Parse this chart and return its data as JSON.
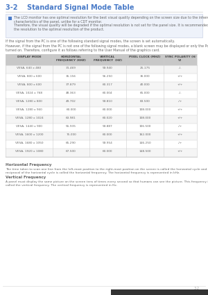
{
  "page_label": "3-2",
  "title": "3-2    Standard Signal Mode Table",
  "title_color": "#4a7bc8",
  "note_icon_color": "#4a7bc8",
  "note_lines_1": "The LCD monitor has one optimal resolution for the best visual quality depending on the screen size due to the inherent\ncharacteristics of the panel, unlike for a CDT monitor.",
  "note_lines_2": "Therefore, the visual quality will be degraded if the optimal resolution is not set for the panel size. It is recommended setting\nthe resolution to the optimal resolution of the product.",
  "para1": "If the signal from the PC is one of the following standard signal modes, the screen is set automatically.",
  "para2": "However, if the signal from the PC is not one of the following signal modes, a blank screen may be displayed or only the Power LED may be\nturned on. Therefore, configure it as follows referring to the User Manual of the graphics card.",
  "table_header": [
    "DISPLAY MODE",
    "HORIZONTAL\nFREQUENCY (KHZ)",
    "VERTICAL\nFREQUENCY  (HZ)",
    "PIXEL CLOCK (MHZ)",
    "SYNC POLARITY (H/\nV)"
  ],
  "table_header_bg": "#c8c8c8",
  "table_row_bg1": "#f5f5f5",
  "table_row_bg2": "#ffffff",
  "table_data": [
    [
      "VESA, 640 x 480",
      "31.469",
      "59.940",
      "25.175",
      "-/-"
    ],
    [
      "VESA, 800 x 600",
      "35.156",
      "56.250",
      "36.000",
      "+/+"
    ],
    [
      "VESA, 800 x 600",
      "37.879",
      "60.317",
      "40.000",
      "+/+"
    ],
    [
      "VESA, 1024 x 768",
      "48.363",
      "60.004",
      "65.000",
      "-/-"
    ],
    [
      "VESA, 1280 x 800",
      "49.702",
      "59.810",
      "83.500",
      "-/+"
    ],
    [
      "VESA, 1280 x 960",
      "60.000",
      "60.000",
      "108.000",
      "+/+"
    ],
    [
      "VESA, 1280 x 1024",
      "63.981",
      "60.020",
      "108.000",
      "+/+"
    ],
    [
      "VESA, 1440 x 900",
      "55.935",
      "59.887",
      "106.500",
      "-/+"
    ],
    [
      "VESA, 1600 x 1200",
      "75.000",
      "60.000",
      "162.000",
      "+/+"
    ],
    [
      "VESA, 1680 x 1050",
      "65.290",
      "59.954",
      "146.250",
      "-/+"
    ],
    [
      "VESA, 1920 x 1080",
      "67.500",
      "60.000",
      "148.500",
      "+/+"
    ]
  ],
  "hfreq_label": "Horizontal Frequency",
  "hfreq_text": "The time taken to scan one line from the left-most position to the right-most position on the screen is called the horizontal cycle and the\nreciprocal of the horizontal cycle is called the horizontal frequency. The horizontal frequency is represented in kHz.",
  "vfreq_label": "Vertical Frequency",
  "vfreq_text": "A panel must display the same picture on the screen tens of times every second so that humans can see the picture. This frequency is\ncalled the vertical frequency. The vertical frequency is represented in Hz.",
  "footer_label": "3-2",
  "bg_color": "#ffffff",
  "text_color": "#666666",
  "table_text_color": "#666666",
  "table_border_color": "#cccccc",
  "note_bg": "#eef2fa",
  "note_border": "#c0c8e0",
  "footer_bar_color": "#333333",
  "footer_line_color": "#dddddd",
  "title_line_color": "#cccccc"
}
